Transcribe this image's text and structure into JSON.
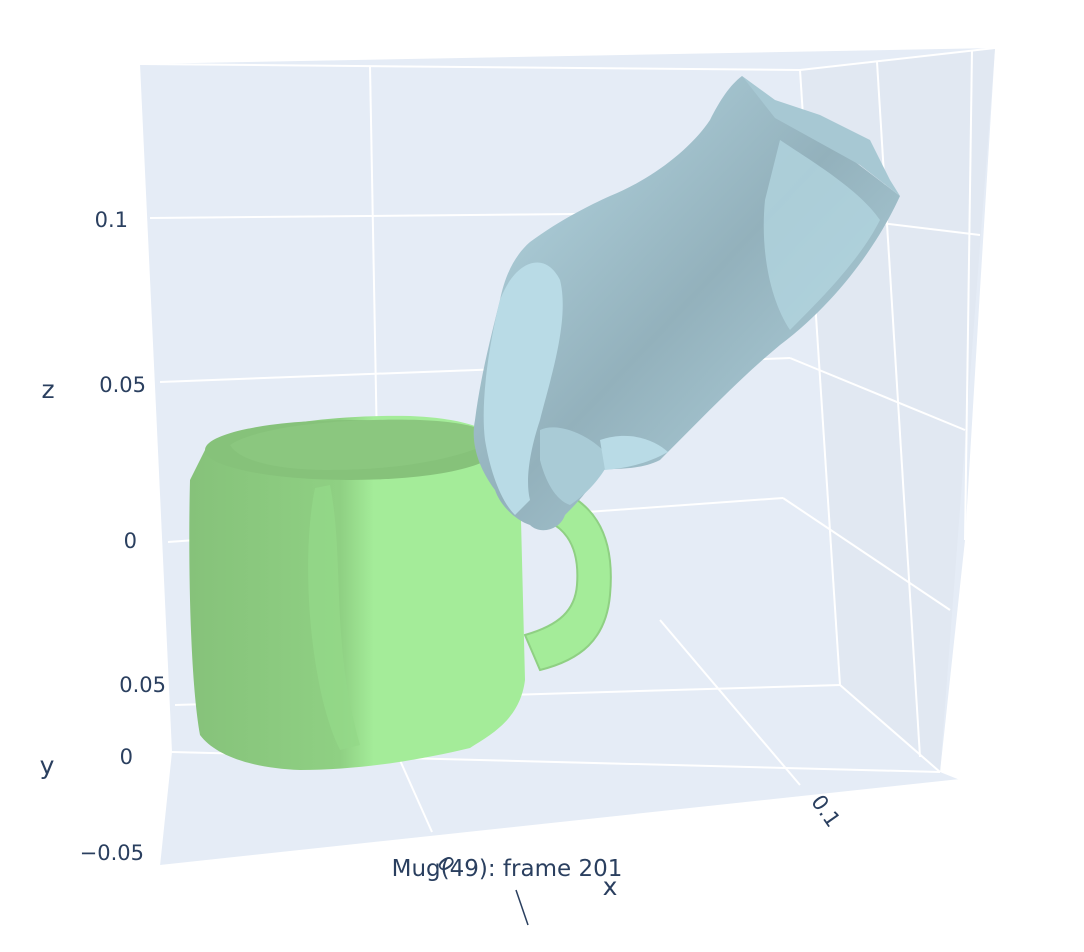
{
  "chart_data": {
    "type": "mesh3d",
    "title": "Mug(49): frame 201",
    "axes": {
      "x": {
        "label": "x",
        "ticks": [
          "0",
          "0.1"
        ]
      },
      "y": {
        "label": "y",
        "ticks": [
          "0.05",
          "0",
          "−0.05"
        ]
      },
      "z": {
        "label": "z",
        "ticks": [
          "0.1",
          "0.05",
          "0"
        ]
      }
    },
    "meshes": [
      {
        "name": "mug",
        "color": "#a4ec99",
        "shade": "#86c27a"
      },
      {
        "name": "hand",
        "color": "#b9dbe6",
        "shade": "#8fadb8"
      }
    ],
    "background": "#e5ecf6",
    "grid_color": "#ffffff",
    "grid": true
  }
}
